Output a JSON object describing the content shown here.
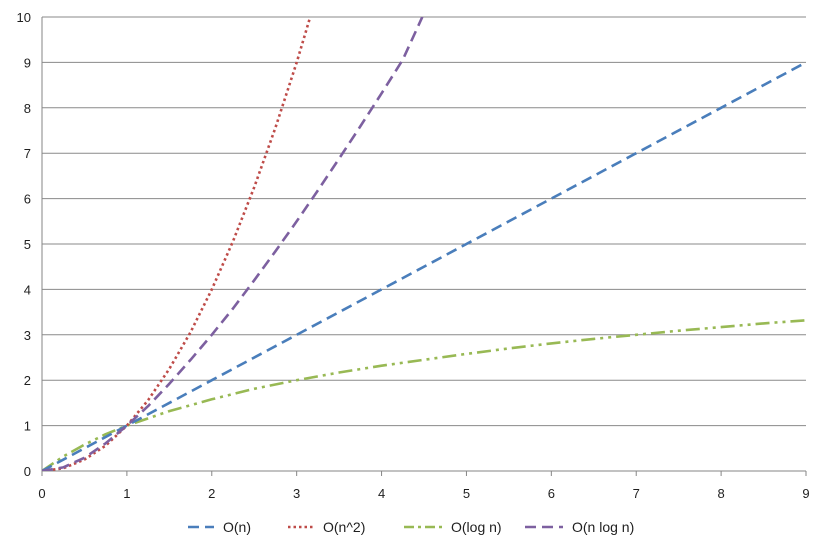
{
  "chart_data": {
    "type": "line",
    "title": "",
    "xlabel": "",
    "ylabel": "",
    "xlim": [
      0,
      9
    ],
    "ylim": [
      0,
      10
    ],
    "x_ticks": [
      0,
      1,
      2,
      3,
      4,
      5,
      6,
      7,
      8,
      9
    ],
    "y_ticks": [
      0,
      1,
      2,
      3,
      4,
      5,
      6,
      7,
      8,
      9,
      10
    ],
    "grid": "horizontal",
    "legend_position": "bottom",
    "series": [
      {
        "name": "O(n)",
        "color": "#4a7ebb",
        "dash": "dashed",
        "points": [
          [
            0,
            0
          ],
          [
            1,
            1
          ],
          [
            2,
            2
          ],
          [
            3,
            3
          ],
          [
            4,
            4
          ],
          [
            5,
            5
          ],
          [
            6,
            6
          ],
          [
            7,
            7
          ],
          [
            8,
            8
          ],
          [
            9,
            9
          ]
        ]
      },
      {
        "name": "O(n^2)",
        "color": "#be4b48",
        "dash": "dotted",
        "points": [
          [
            0,
            0
          ],
          [
            0.25,
            0.06
          ],
          [
            0.5,
            0.25
          ],
          [
            0.75,
            0.56
          ],
          [
            1,
            1
          ],
          [
            1.25,
            1.56
          ],
          [
            1.5,
            2.25
          ],
          [
            1.75,
            3.06
          ],
          [
            2,
            4
          ],
          [
            2.25,
            5.06
          ],
          [
            2.5,
            6.25
          ],
          [
            2.75,
            7.56
          ],
          [
            3,
            9
          ],
          [
            3.16,
            10
          ]
        ]
      },
      {
        "name": "O(log n)",
        "color": "#98b954",
        "dash": "dash-dot-dot",
        "points": [
          [
            0,
            0
          ],
          [
            0.25,
            0.32
          ],
          [
            0.5,
            0.58
          ],
          [
            0.75,
            0.81
          ],
          [
            1,
            1
          ],
          [
            1.5,
            1.32
          ],
          [
            2,
            1.58
          ],
          [
            2.5,
            1.81
          ],
          [
            3,
            2
          ],
          [
            3.5,
            2.17
          ],
          [
            4,
            2.32
          ],
          [
            4.5,
            2.45
          ],
          [
            5,
            2.58
          ],
          [
            5.5,
            2.7
          ],
          [
            6,
            2.81
          ],
          [
            6.5,
            2.91
          ],
          [
            7,
            3
          ],
          [
            7.5,
            3.09
          ],
          [
            8,
            3.17
          ],
          [
            8.5,
            3.25
          ],
          [
            9,
            3.32
          ]
        ]
      },
      {
        "name": "O(n log n)",
        "color": "#7d60a0",
        "dash": "dashed",
        "points": [
          [
            0,
            0
          ],
          [
            0.25,
            0.08
          ],
          [
            0.5,
            0.29
          ],
          [
            0.75,
            0.61
          ],
          [
            1,
            1
          ],
          [
            1.25,
            1.43
          ],
          [
            1.5,
            1.92
          ],
          [
            1.75,
            2.45
          ],
          [
            2,
            3
          ],
          [
            2.25,
            3.58
          ],
          [
            2.5,
            4.2
          ],
          [
            2.75,
            4.84
          ],
          [
            3,
            5.5
          ],
          [
            3.25,
            6.18
          ],
          [
            3.5,
            6.88
          ],
          [
            3.75,
            7.59
          ],
          [
            4,
            8.32
          ],
          [
            4.25,
            9.06
          ],
          [
            4.48,
            10
          ]
        ]
      }
    ]
  }
}
